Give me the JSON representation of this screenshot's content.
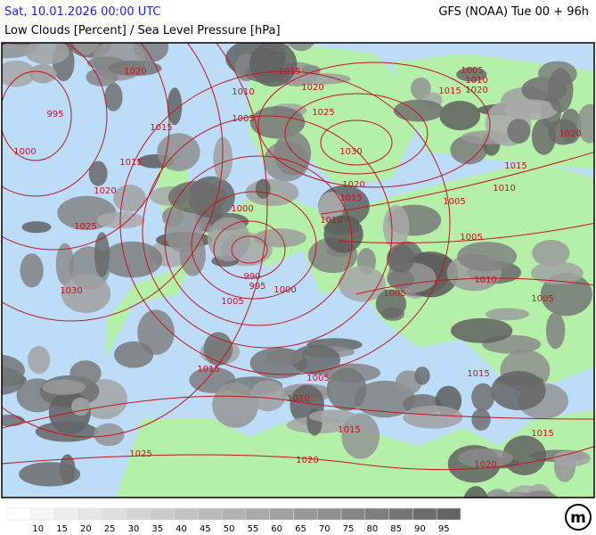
{
  "header": {
    "title": "Sat, 10.01.2026 00:00 UTC",
    "model": "GFS (NOAA) Tue 00 + 96h",
    "subtitle": "Low Clouds [Percent] / Sea Level Pressure [hPa]"
  },
  "isobar_labels": [
    "1020",
    "995",
    "1015",
    "1000",
    "1015",
    "1020",
    "1025",
    "1030",
    "1010",
    "1005",
    "1015",
    "1020",
    "1025",
    "1030",
    "1020",
    "1015",
    "1010",
    "1000",
    "990",
    "995",
    "1000",
    "1005",
    "1005",
    "1005",
    "1005",
    "1010",
    "1005",
    "1005",
    "1010",
    "1020",
    "1015",
    "1020",
    "1015",
    "1010",
    "1015",
    "1005",
    "1010",
    "1015",
    "1015",
    "1015",
    "1025",
    "1020",
    "1020"
  ],
  "legend": {
    "labels": [
      10,
      15,
      20,
      25,
      30,
      35,
      40,
      45,
      50,
      55,
      60,
      65,
      70,
      75,
      80,
      85,
      90,
      95
    ]
  },
  "logo": "m"
}
